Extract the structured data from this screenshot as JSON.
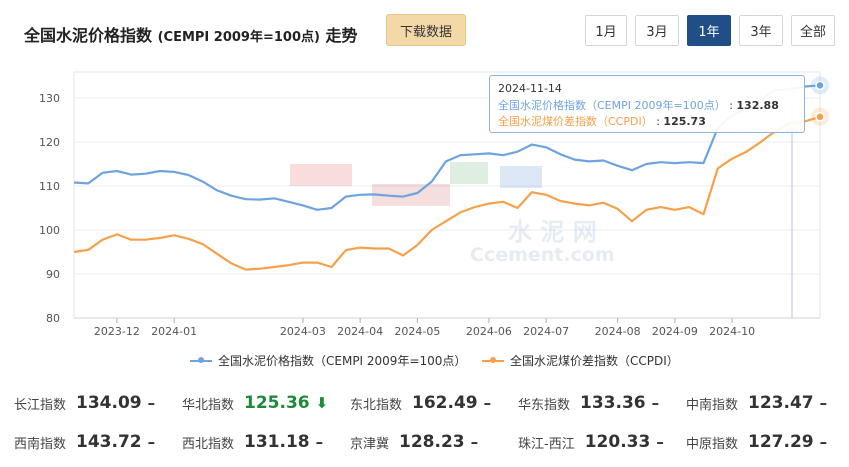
{
  "header": {
    "title": "全国水泥价格指数",
    "subtitle": "(CEMPI 2009年=100点)",
    "trend_word": "走势",
    "download_label": "下载数据",
    "ranges": [
      "1月",
      "3月",
      "1年",
      "3年",
      "全部"
    ],
    "active_range": "1年"
  },
  "tooltip": {
    "date": "2024-11-14",
    "rows": [
      {
        "label": "全国水泥价格指数（CEMPI 2009年=100点）",
        "value": "132.88"
      },
      {
        "label": "全国水泥煤价差指数（CCPDI）",
        "value": "125.73"
      }
    ]
  },
  "chart_data": {
    "type": "line",
    "x": [
      "2023-11-15",
      "2023-11-22",
      "2023-11-29",
      "2023-12-06",
      "2023-12-13",
      "2023-12-20",
      "2023-12-27",
      "2024-01-03",
      "2024-01-10",
      "2024-01-17",
      "2024-01-24",
      "2024-01-31",
      "2024-02-07",
      "2024-02-14",
      "2024-02-21",
      "2024-02-28",
      "2024-03-06",
      "2024-03-13",
      "2024-03-20",
      "2024-03-27",
      "2024-04-03",
      "2024-04-10",
      "2024-04-17",
      "2024-04-24",
      "2024-05-01",
      "2024-05-08",
      "2024-05-15",
      "2024-05-22",
      "2024-05-29",
      "2024-06-05",
      "2024-06-12",
      "2024-06-19",
      "2024-06-26",
      "2024-07-03",
      "2024-07-10",
      "2024-07-17",
      "2024-07-24",
      "2024-07-31",
      "2024-08-07",
      "2024-08-14",
      "2024-08-21",
      "2024-08-28",
      "2024-09-04",
      "2024-09-11",
      "2024-09-18",
      "2024-09-25",
      "2024-10-02",
      "2024-10-09",
      "2024-10-16",
      "2024-10-23",
      "2024-10-30",
      "2024-11-06",
      "2024-11-14"
    ],
    "series": [
      {
        "name": "全国水泥价格指数（CEMPI 2009年=100点）",
        "color": "#6fa3df",
        "values": [
          110.8,
          110.6,
          113.0,
          113.4,
          112.6,
          112.8,
          113.4,
          113.2,
          112.5,
          111.0,
          109.0,
          107.8,
          107.0,
          106.9,
          107.2,
          106.4,
          105.6,
          104.6,
          105.0,
          107.6,
          108.0,
          108.1,
          107.8,
          107.6,
          108.4,
          111.0,
          115.6,
          117.0,
          117.2,
          117.4,
          117.0,
          117.8,
          119.4,
          118.8,
          117.2,
          116.0,
          115.6,
          115.8,
          114.6,
          113.6,
          115.0,
          115.4,
          115.2,
          115.4,
          115.2,
          123.2,
          126.0,
          127.6,
          129.6,
          131.8,
          132.0,
          132.6,
          132.88
        ]
      },
      {
        "name": "全国水泥煤价差指数（CCPDI）",
        "color": "#f5a04a",
        "values": [
          95.0,
          95.5,
          97.8,
          99.0,
          97.8,
          97.8,
          98.2,
          98.8,
          98.0,
          96.8,
          94.6,
          92.4,
          91.0,
          91.2,
          91.6,
          92.0,
          92.6,
          92.6,
          91.6,
          95.4,
          96.0,
          95.8,
          95.8,
          94.2,
          96.6,
          100.0,
          102.0,
          104.0,
          105.2,
          106.0,
          106.4,
          105.0,
          108.6,
          108.0,
          106.6,
          106.0,
          105.6,
          106.2,
          104.8,
          102.0,
          104.6,
          105.2,
          104.6,
          105.2,
          103.6,
          114.0,
          116.2,
          117.8,
          120.0,
          122.4,
          124.2,
          124.6,
          125.73
        ]
      }
    ],
    "x_ticks": [
      [
        "2023-12",
        "2023-12-06"
      ],
      [
        "2024-01",
        "2024-01-03"
      ],
      [
        "2024-03",
        "2024-03-06"
      ],
      [
        "2024-04",
        "2024-04-03"
      ],
      [
        "2024-05",
        "2024-05-01"
      ],
      [
        "2024-06",
        "2024-06-05"
      ],
      [
        "2024-07",
        "2024-07-03"
      ],
      [
        "2024-08",
        "2024-08-07"
      ],
      [
        "2024-09",
        "2024-09-04"
      ],
      [
        "2024-10",
        "2024-10-02"
      ]
    ],
    "y_ticks": [
      80,
      90,
      100,
      110,
      120,
      130
    ],
    "ylim": [
      80,
      135
    ],
    "grid": true,
    "legend_position": "bottom",
    "watermark": [
      "水 泥 网",
      "Ccement.com"
    ]
  },
  "sub_indices": [
    {
      "name": "长江指数",
      "value": "134.09",
      "trend": "–",
      "dir": "flat"
    },
    {
      "name": "华北指数",
      "value": "125.36",
      "trend": "⬇",
      "dir": "down"
    },
    {
      "name": "东北指数",
      "value": "162.49",
      "trend": "–",
      "dir": "flat"
    },
    {
      "name": "华东指数",
      "value": "133.36",
      "trend": "–",
      "dir": "flat"
    },
    {
      "name": "中南指数",
      "value": "123.47",
      "trend": "–",
      "dir": "flat"
    },
    {
      "name": "西南指数",
      "value": "143.72",
      "trend": "–",
      "dir": "flat"
    },
    {
      "name": "西北指数",
      "value": "131.18",
      "trend": "–",
      "dir": "flat"
    },
    {
      "name": "京津冀",
      "value": "128.23",
      "trend": "–",
      "dir": "flat"
    },
    {
      "name": "珠江-西江",
      "value": "120.33",
      "trend": "–",
      "dir": "flat"
    },
    {
      "name": "中原指数",
      "value": "127.29",
      "trend": "–",
      "dir": "flat"
    }
  ]
}
